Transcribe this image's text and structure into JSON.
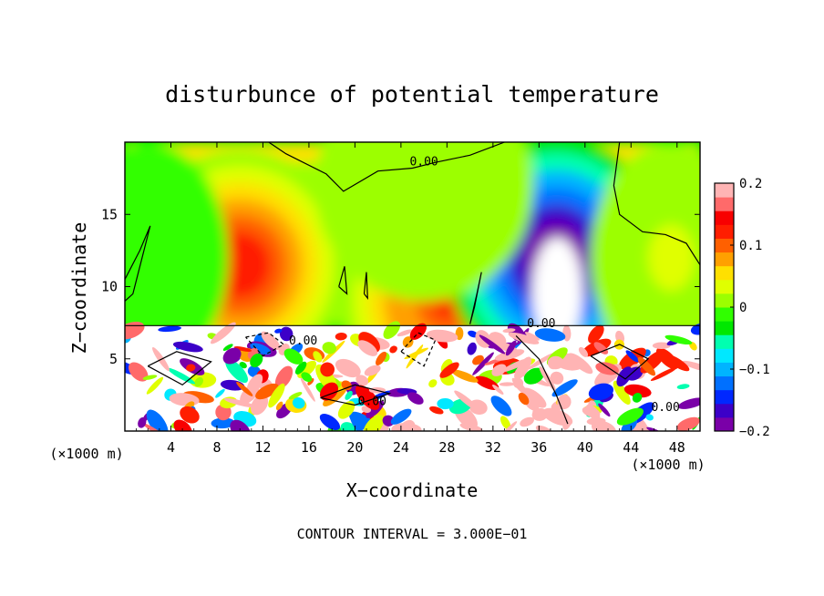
{
  "chart_data": {
    "type": "heatmap",
    "title": "disturbunce of potential temperature",
    "xlabel": "X−coordinate",
    "ylabel": "Z−coordinate",
    "xunit_left": "(×1000 m)",
    "xunit_right": "(×1000 m)",
    "xlim": [
      0,
      50
    ],
    "ylim": [
      0,
      20
    ],
    "x_ticks": [
      4,
      8,
      12,
      16,
      20,
      24,
      28,
      32,
      36,
      40,
      44,
      48
    ],
    "y_ticks": [
      5,
      10,
      15
    ],
    "colorbar": {
      "range": [
        -0.2,
        0.2
      ],
      "ticks": [
        {
          "value": 0.2,
          "label": "0.2"
        },
        {
          "value": 0.1,
          "label": "0.1"
        },
        {
          "value": 0.0,
          "label": "0"
        },
        {
          "value": -0.1,
          "label": "−0.1"
        },
        {
          "value": -0.2,
          "label": "−0.2"
        }
      ]
    },
    "contour_labels": [
      {
        "text": "0.00",
        "x": 26.0,
        "y": 18.4
      },
      {
        "text": "0.00",
        "x": 36.2,
        "y": 7.2
      },
      {
        "text": "0.00",
        "x": 15.5,
        "y": 6.0
      },
      {
        "text": "0.00",
        "x": 21.5,
        "y": 1.8
      },
      {
        "text": "0.00",
        "x": 47.0,
        "y": 1.4
      }
    ],
    "footer": "CONTOUR INTERVAL = 3.000E−01",
    "interface_height": 7.3,
    "upper_field": [
      {
        "x": 10.0,
        "z": 11.5,
        "value": 0.13
      },
      {
        "x": 28.0,
        "z": 9.0,
        "value": 0.12
      },
      {
        "x": 37.5,
        "z": 12.0,
        "value": -0.22
      },
      {
        "x": 47.5,
        "z": 12.0,
        "value": 0.03
      },
      {
        "x": 26.0,
        "z": 17.0,
        "value": 0.02
      },
      {
        "x": 2.0,
        "z": 12.0,
        "value": -0.01
      }
    ]
  },
  "colors": {
    "palette": [
      "#7a00a8",
      "#3c00c8",
      "#0028ff",
      "#0070ff",
      "#00b4ff",
      "#00e8ff",
      "#00ffb0",
      "#00e800",
      "#30ff00",
      "#9cff00",
      "#e0ff00",
      "#ffe000",
      "#ffa000",
      "#ff6000",
      "#ff1e00",
      "#f80000",
      "#ff6a6a",
      "#ffb4b4"
    ],
    "outside": "#ffffff"
  }
}
